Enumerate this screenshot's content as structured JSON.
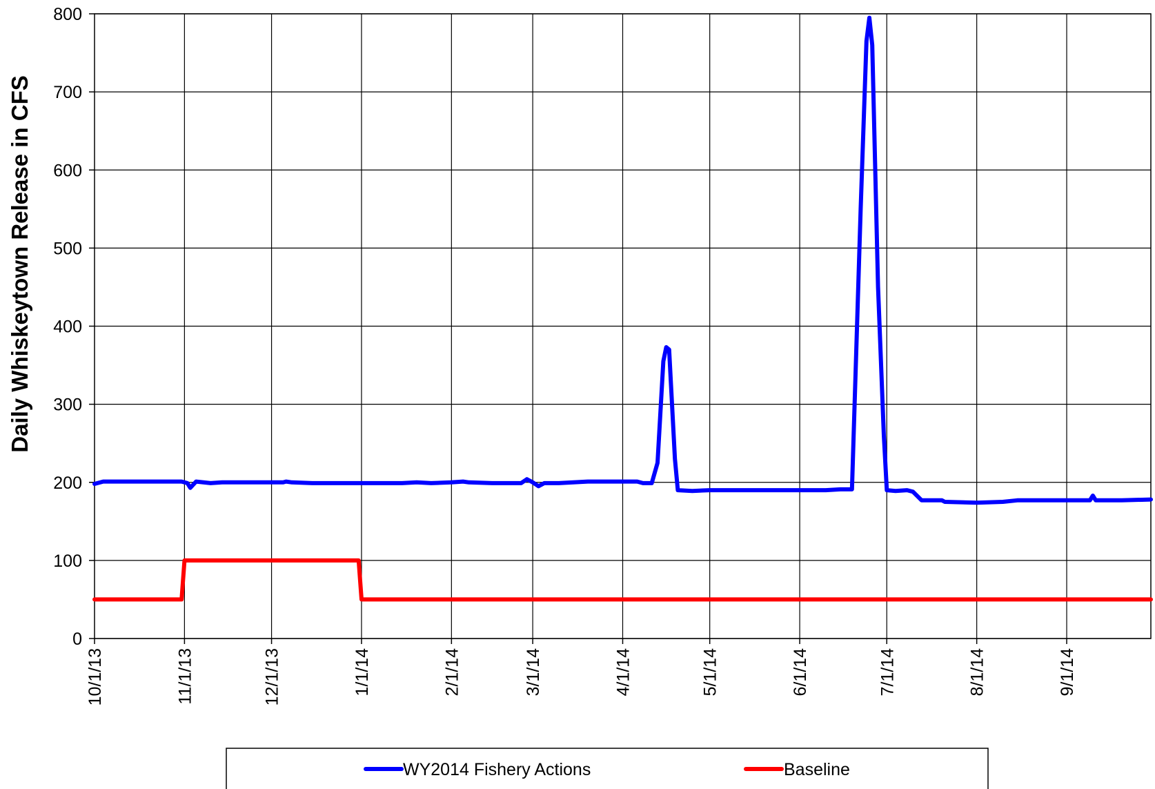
{
  "chart_data": {
    "type": "line",
    "title": "",
    "xlabel": "",
    "ylabel": "Daily Whiskeytown Release in CFS",
    "ylim": [
      0,
      800
    ],
    "y_ticks": [
      0,
      100,
      200,
      300,
      400,
      500,
      600,
      700,
      800
    ],
    "xlim": [
      "2013-10-01",
      "2014-09-30"
    ],
    "x_ticks": [
      {
        "date": "2013-10-01",
        "label": "10/1/13"
      },
      {
        "date": "2013-11-01",
        "label": "11/1/13"
      },
      {
        "date": "2013-12-01",
        "label": "12/1/13"
      },
      {
        "date": "2014-01-01",
        "label": "1/1/14"
      },
      {
        "date": "2014-02-01",
        "label": "2/1/14"
      },
      {
        "date": "2014-03-01",
        "label": "3/1/14"
      },
      {
        "date": "2014-04-01",
        "label": "4/1/14"
      },
      {
        "date": "2014-05-01",
        "label": "5/1/14"
      },
      {
        "date": "2014-06-01",
        "label": "6/1/14"
      },
      {
        "date": "2014-07-01",
        "label": "7/1/14"
      },
      {
        "date": "2014-08-01",
        "label": "8/1/14"
      },
      {
        "date": "2014-09-01",
        "label": "9/1/14"
      }
    ],
    "grid": true,
    "legend_position": "bottom",
    "series": [
      {
        "name": "WY2014 Fishery Actions",
        "color": "#0000ff",
        "points": [
          [
            "2013-10-01",
            198
          ],
          [
            "2013-10-04",
            201
          ],
          [
            "2013-10-15",
            201
          ],
          [
            "2013-10-31",
            201
          ],
          [
            "2013-11-02",
            199
          ],
          [
            "2013-11-03",
            193
          ],
          [
            "2013-11-05",
            201
          ],
          [
            "2013-11-10",
            199
          ],
          [
            "2013-11-14",
            200
          ],
          [
            "2013-11-20",
            200
          ],
          [
            "2013-12-01",
            200
          ],
          [
            "2013-12-05",
            200
          ],
          [
            "2013-12-06",
            201
          ],
          [
            "2013-12-08",
            200
          ],
          [
            "2013-12-15",
            199
          ],
          [
            "2014-01-01",
            199
          ],
          [
            "2014-01-15",
            199
          ],
          [
            "2014-01-20",
            200
          ],
          [
            "2014-01-25",
            199
          ],
          [
            "2014-02-01",
            200
          ],
          [
            "2014-02-05",
            201
          ],
          [
            "2014-02-07",
            200
          ],
          [
            "2014-02-15",
            199
          ],
          [
            "2014-02-25",
            199
          ],
          [
            "2014-02-27",
            204
          ],
          [
            "2014-03-01",
            200
          ],
          [
            "2014-03-03",
            195
          ],
          [
            "2014-03-05",
            199
          ],
          [
            "2014-03-10",
            199
          ],
          [
            "2014-03-15",
            200
          ],
          [
            "2014-03-20",
            201
          ],
          [
            "2014-04-01",
            201
          ],
          [
            "2014-04-06",
            201
          ],
          [
            "2014-04-08",
            199
          ],
          [
            "2014-04-11",
            199
          ],
          [
            "2014-04-13",
            225
          ],
          [
            "2014-04-15",
            355
          ],
          [
            "2014-04-16",
            373
          ],
          [
            "2014-04-17",
            370
          ],
          [
            "2014-04-19",
            230
          ],
          [
            "2014-04-20",
            190
          ],
          [
            "2014-04-25",
            189
          ],
          [
            "2014-05-01",
            190
          ],
          [
            "2014-05-10",
            190
          ],
          [
            "2014-05-20",
            190
          ],
          [
            "2014-06-01",
            190
          ],
          [
            "2014-06-10",
            190
          ],
          [
            "2014-06-15",
            191
          ],
          [
            "2014-06-19",
            191
          ],
          [
            "2014-06-22",
            550
          ],
          [
            "2014-06-24",
            765
          ],
          [
            "2014-06-25",
            795
          ],
          [
            "2014-06-26",
            760
          ],
          [
            "2014-06-28",
            450
          ],
          [
            "2014-06-30",
            260
          ],
          [
            "2014-07-01",
            190
          ],
          [
            "2014-07-04",
            189
          ],
          [
            "2014-07-08",
            190
          ],
          [
            "2014-07-10",
            188
          ],
          [
            "2014-07-13",
            177
          ],
          [
            "2014-07-20",
            177
          ],
          [
            "2014-07-21",
            175
          ],
          [
            "2014-08-01",
            174
          ],
          [
            "2014-08-10",
            175
          ],
          [
            "2014-08-15",
            177
          ],
          [
            "2014-08-25",
            177
          ],
          [
            "2014-09-09",
            177
          ],
          [
            "2014-09-10",
            183
          ],
          [
            "2014-09-11",
            177
          ],
          [
            "2014-09-20",
            177
          ],
          [
            "2014-09-30",
            178
          ]
        ]
      },
      {
        "name": "Baseline",
        "color": "#ff0000",
        "points": [
          [
            "2013-10-01",
            50
          ],
          [
            "2013-10-31",
            50
          ],
          [
            "2013-11-01",
            100
          ],
          [
            "2013-12-31",
            100
          ],
          [
            "2014-01-01",
            50
          ],
          [
            "2014-09-30",
            50
          ]
        ]
      }
    ]
  }
}
